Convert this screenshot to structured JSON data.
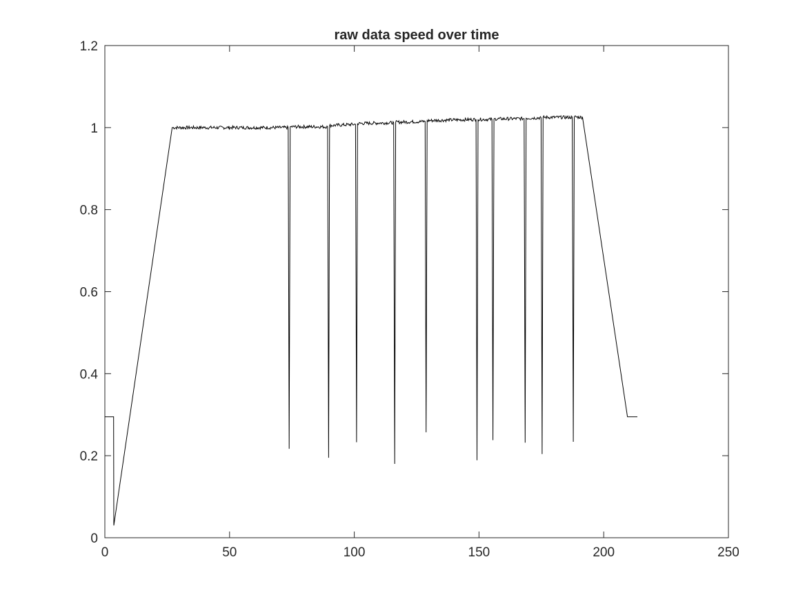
{
  "chart_data": {
    "type": "line",
    "title": "raw data speed over time",
    "xlabel": "",
    "ylabel": "",
    "xlim": [
      0,
      250
    ],
    "ylim": [
      0,
      1.2
    ],
    "xticks": [
      0,
      50,
      100,
      150,
      200,
      250
    ],
    "yticks": [
      0,
      0.2,
      0.4,
      0.6,
      0.8,
      1,
      1.2
    ],
    "xtick_labels": [
      "0",
      "50",
      "100",
      "150",
      "200",
      "250"
    ],
    "ytick_labels": [
      "0",
      "0.2",
      "0.4",
      "0.6",
      "0.8",
      "1",
      "1.2"
    ],
    "grid": false,
    "colors": {
      "line": "#000000",
      "axes": "#262626",
      "background": "#ffffff"
    },
    "series": [
      {
        "x": [
          3.5,
          3.6,
          27,
          40,
          55,
          73.5,
          73.9,
          74.3,
          89.3,
          89.7,
          90.1,
          100.5,
          100.9,
          101.3,
          115.8,
          116.2,
          116.6,
          128.4,
          128.8,
          129.2,
          148.8,
          149.2,
          149.6,
          155.2,
          155.6,
          156.0,
          168.1,
          168.5,
          168.9,
          174.9,
          175.3,
          175.7,
          187.4,
          187.8,
          188.2,
          191.5,
          209.5,
          213.5
        ],
        "y": [
          0.295,
          0.03,
          1.0,
          1.0,
          1.0,
          1.0,
          0.217,
          1.002,
          1.002,
          0.195,
          1.005,
          1.008,
          0.233,
          1.01,
          1.012,
          0.18,
          1.013,
          1.015,
          0.257,
          1.017,
          1.02,
          0.189,
          1.02,
          1.02,
          0.238,
          1.021,
          1.022,
          0.232,
          1.023,
          1.024,
          0.204,
          1.025,
          1.025,
          0.234,
          1.026,
          1.025,
          0.295,
          0.295
        ]
      }
    ]
  }
}
